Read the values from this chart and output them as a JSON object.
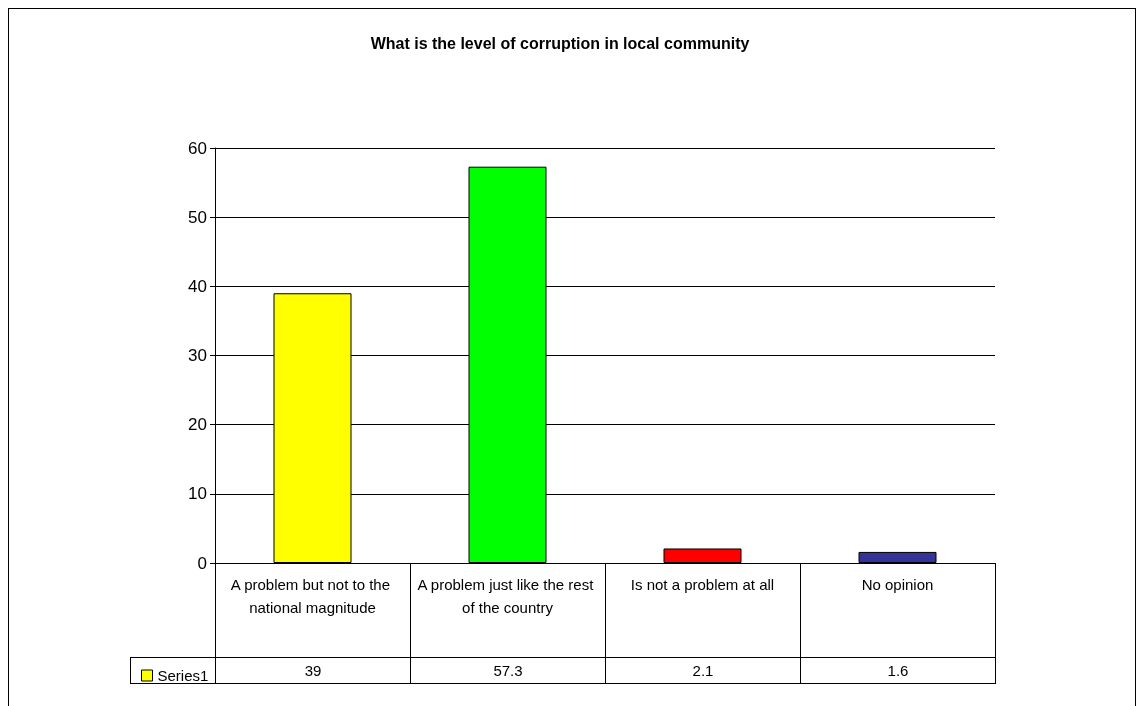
{
  "chart_data": {
    "type": "bar",
    "title": "What is the level of corruption in local community",
    "categories": [
      "A problem but not to the national magnitude",
      "A problem just like the rest of the country",
      "Is not a problem at all",
      "No opinion"
    ],
    "series": [
      {
        "name": "Series1",
        "color": "#ffff00",
        "colors": [
          "#ffff00",
          "#00ff00",
          "#ff0000",
          "#333399"
        ],
        "values": [
          39,
          57.3,
          2.1,
          1.6
        ]
      }
    ],
    "ylim": [
      0,
      60
    ],
    "yticks": [
      0,
      10,
      20,
      30,
      40,
      50,
      60
    ],
    "grid": "y",
    "data_labels": true,
    "legend": "bottom left"
  }
}
